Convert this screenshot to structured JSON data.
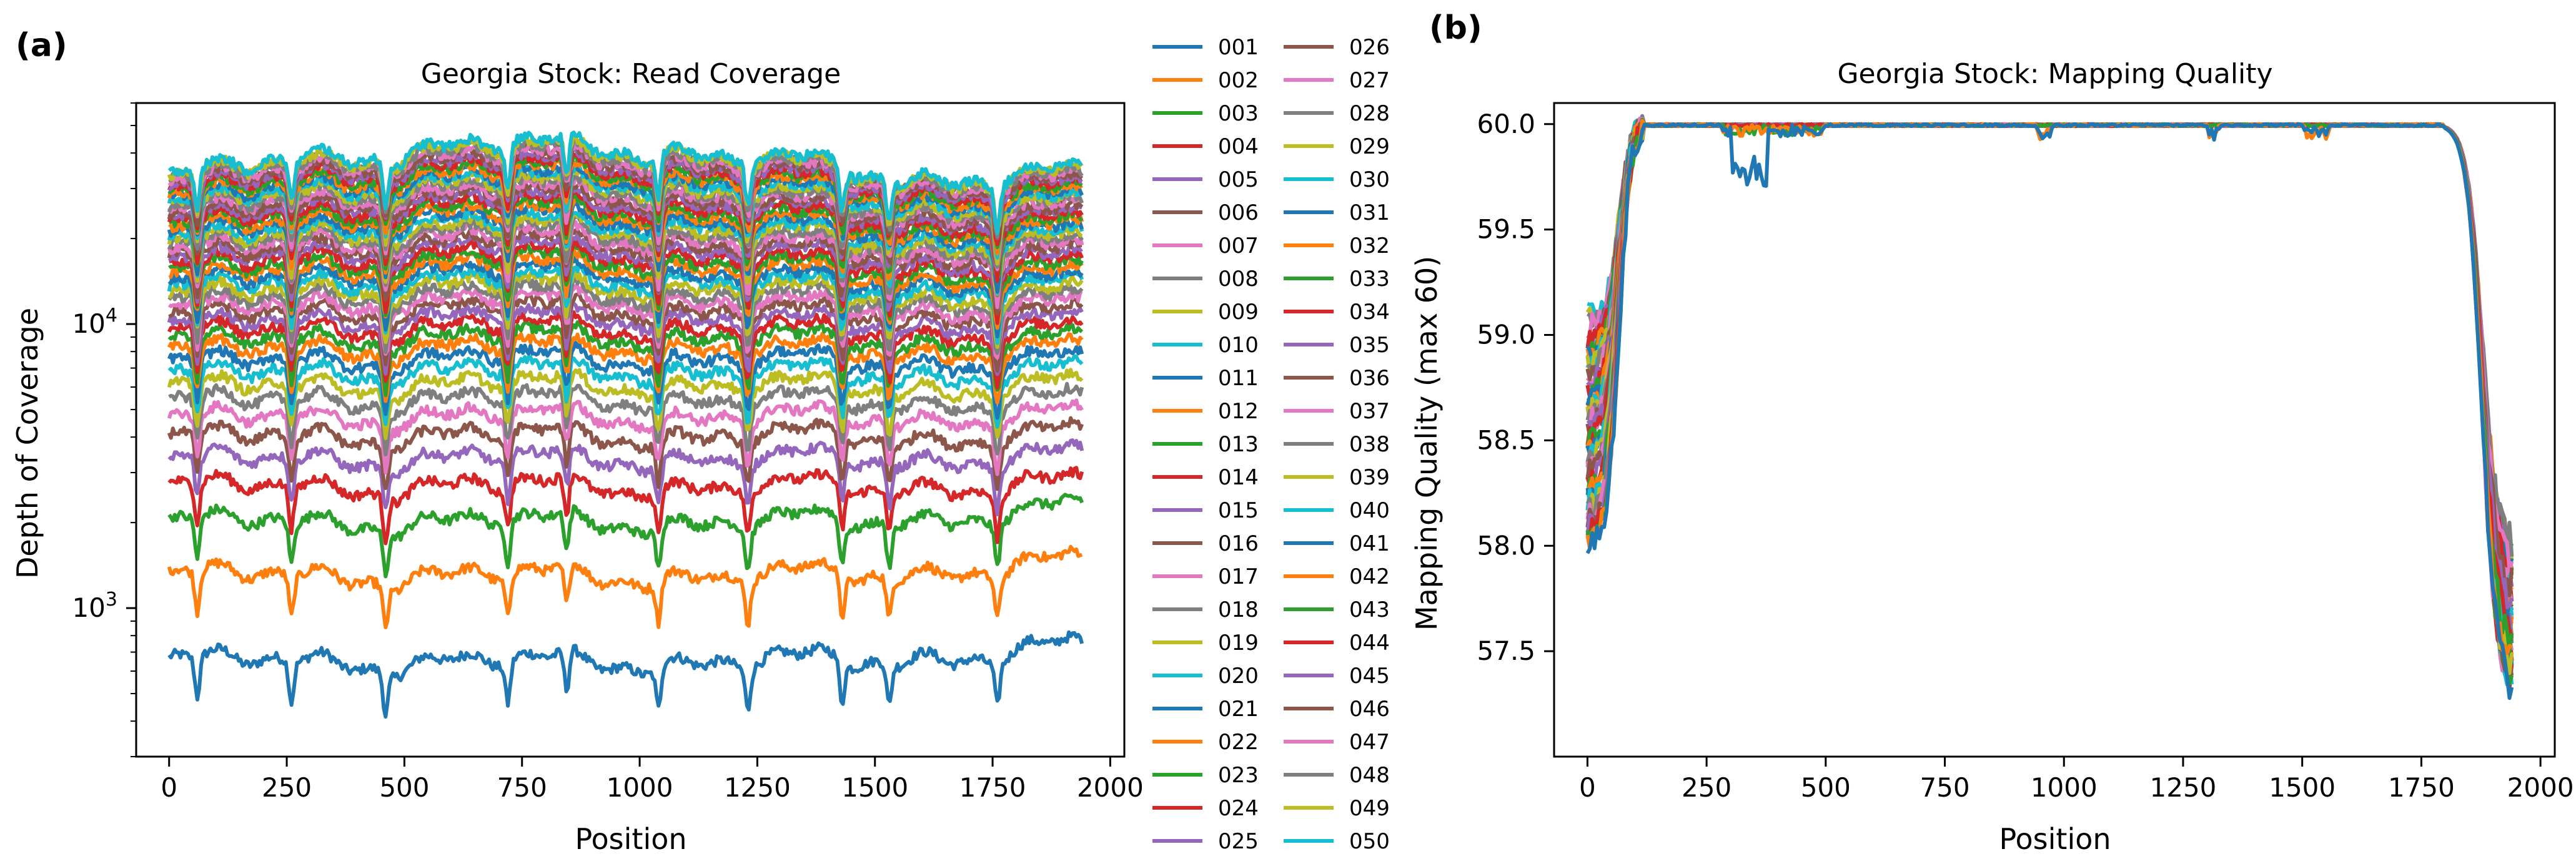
{
  "panels": {
    "a": {
      "label": "(a)"
    },
    "b": {
      "label": "(b)"
    }
  },
  "colors": [
    "#1f77b4",
    "#ff7f0e",
    "#2ca02c",
    "#d62728",
    "#9467bd",
    "#8c564b",
    "#e377c2",
    "#7f7f7f",
    "#bcbd22",
    "#17becf"
  ],
  "chart_data": [
    {
      "type": "line",
      "title": "Georgia Stock: Read Coverage",
      "xlabel": "Position",
      "ylabel": "Depth of Coverage",
      "yscale": "log",
      "xlim": [
        -70,
        2030
      ],
      "ylim": [
        300,
        60000
      ],
      "x_ticks": [
        0,
        250,
        500,
        750,
        1000,
        1250,
        1500,
        1750,
        2000
      ],
      "y_ticks": [
        {
          "value": 1000,
          "base": "10",
          "exp": "3"
        },
        {
          "value": 10000,
          "base": "10",
          "exp": "4"
        }
      ],
      "x_range": [
        0,
        1940
      ],
      "series_count": 50,
      "series_base_depth": [
        650,
        1300,
        2000,
        2650,
        3300,
        3950,
        4600,
        5250,
        5900,
        6550,
        7200,
        7850,
        8500,
        9150,
        9800,
        10450,
        11100,
        11750,
        12400,
        13050,
        13700,
        14350,
        15000,
        15650,
        16300,
        16950,
        17600,
        18250,
        18900,
        19550,
        20200,
        20850,
        21500,
        22150,
        22800,
        23450,
        24100,
        24750,
        25400,
        26050,
        26700,
        27350,
        28000,
        28650,
        29300,
        29950,
        30600,
        31250,
        31900,
        32550
      ],
      "dip_positions": [
        60,
        260,
        460,
        720,
        845,
        1040,
        1230,
        1430,
        1530,
        1760
      ]
    },
    {
      "type": "line",
      "title": "Georgia Stock: Mapping Quality",
      "xlabel": "Position",
      "ylabel": "Mapping Quality (max 60)",
      "xlim": [
        -70,
        2030
      ],
      "ylim": [
        57.0,
        60.1
      ],
      "x_ticks": [
        0,
        250,
        500,
        750,
        1000,
        1250,
        1500,
        1750,
        2000
      ],
      "y_ticks": [
        57.5,
        58.0,
        58.5,
        59.0,
        59.5,
        60.0
      ],
      "y_tick_labels": [
        "57.5",
        "58.0",
        "58.5",
        "59.0",
        "59.5",
        "60.0"
      ],
      "x_range": [
        0,
        1940
      ],
      "series_count": 50,
      "profile_note": "rises from ~58-59 at 0 to 60.0 by ~120, flat ~60 until ~1800, drops to ~57.5 near 1940",
      "start_range": [
        58.0,
        59.1
      ],
      "end_range": [
        57.3,
        58.0
      ],
      "plateau": 60.0
    }
  ],
  "legend": {
    "entries": [
      "001",
      "002",
      "003",
      "004",
      "005",
      "006",
      "007",
      "008",
      "009",
      "010",
      "011",
      "012",
      "013",
      "014",
      "015",
      "016",
      "017",
      "018",
      "019",
      "020",
      "021",
      "022",
      "023",
      "024",
      "025",
      "026",
      "027",
      "028",
      "029",
      "030",
      "031",
      "032",
      "033",
      "034",
      "035",
      "036",
      "037",
      "038",
      "039",
      "040",
      "041",
      "042",
      "043",
      "044",
      "045",
      "046",
      "047",
      "048",
      "049",
      "050"
    ]
  }
}
